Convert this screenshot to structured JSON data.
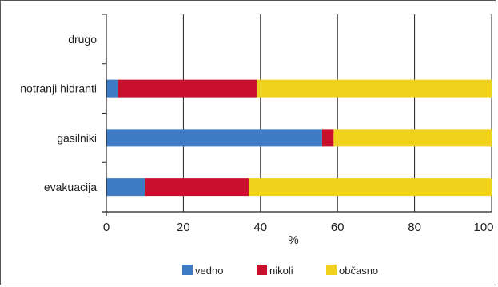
{
  "chart_data": {
    "type": "bar",
    "orientation": "horizontal",
    "stacked": true,
    "percent_stacked": true,
    "categories": [
      "drugo",
      "notranji hidranti",
      "gasilniki",
      "evakuacija"
    ],
    "series": [
      {
        "name": "vedno",
        "color": "#3f7bc4",
        "values": [
          0,
          3,
          56,
          10
        ]
      },
      {
        "name": "nikoli",
        "color": "#c8102e",
        "values": [
          0,
          36,
          3,
          27
        ]
      },
      {
        "name": "občasno",
        "color": "#f0d21c",
        "values": [
          0,
          61,
          41,
          63
        ]
      }
    ],
    "xlabel": "%",
    "ylabel": "",
    "xlim": [
      0,
      100
    ],
    "xticks": [
      0,
      20,
      40,
      60,
      80,
      100
    ],
    "grid": "vertical",
    "legend_position": "bottom"
  }
}
